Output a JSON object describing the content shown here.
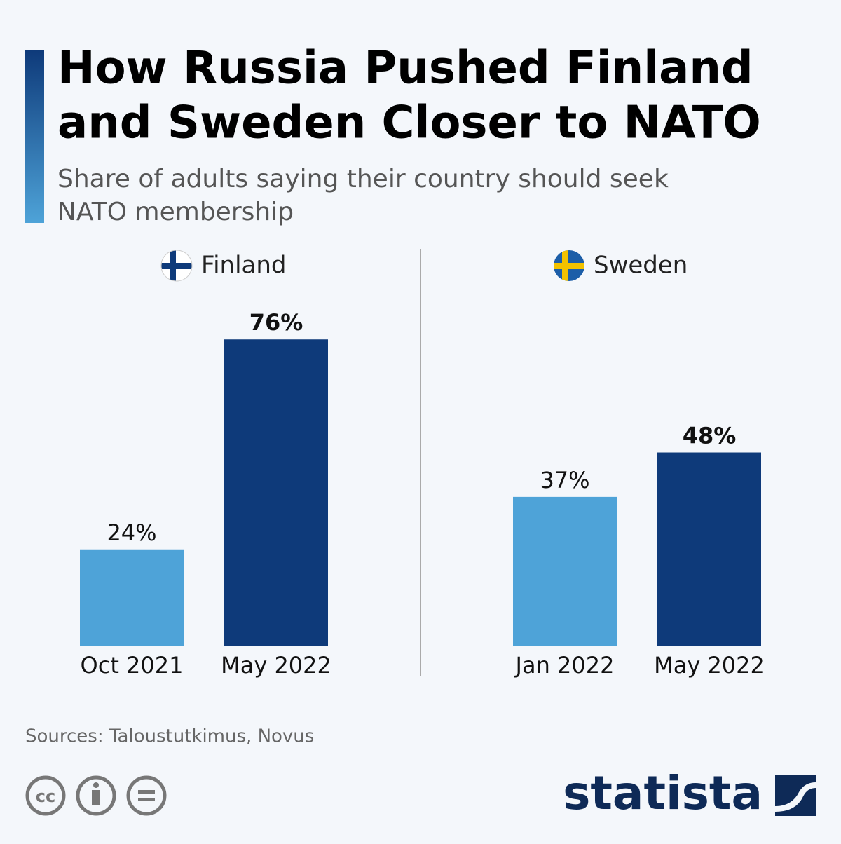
{
  "header": {
    "title": [
      "How Russia Pushed Finland",
      "and Sweden Closer to NATO"
    ],
    "subtitle": [
      "Share of adults saying their country should seek",
      "NATO membership"
    ]
  },
  "chart_data": [
    {
      "type": "bar",
      "title": "Finland",
      "categories": [
        "Oct 2021",
        "May 2022"
      ],
      "values": [
        24,
        76
      ],
      "value_labels": [
        "24%",
        "76%"
      ],
      "colors": [
        "#4ea3d8",
        "#0e3a7a"
      ]
    },
    {
      "type": "bar",
      "title": "Sweden",
      "categories": [
        "Jan 2022",
        "May 2022"
      ],
      "values": [
        37,
        48
      ],
      "value_labels": [
        "37%",
        "48%"
      ],
      "colors": [
        "#4ea3d8",
        "#0e3a7a"
      ]
    }
  ],
  "source": "Sources: Taloustutkimus, Novus",
  "brand": "statista"
}
